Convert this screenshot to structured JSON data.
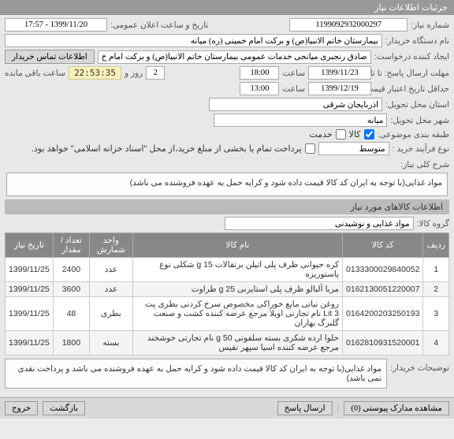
{
  "panel_title": "جزئیات اطلاعات نیاز",
  "top": {
    "need_no_label": "شماره نیاز:",
    "need_no": "1199092932000297",
    "announce_label": "تاریخ و ساعت اعلان عمومی:",
    "announce_value": "1399/11/20 - 17:57",
    "buyer_org_label": "نام دستگاه خریدار:",
    "buyer_org": "بیمارستان خاتم الانبیا(ص) و برکت امام خمینی (ره) میانه",
    "creator_label": "ایجاد کننده درخواست:",
    "creator": "صادق رنجبری میانجی خدمات عمومی بیمارستان خاتم الانبیا(ص) و برکت امام خ",
    "contact_btn": "اطلاعات تماس خریدار",
    "deadline_label": "مهلت ارسال پاسخ: تا تاریخ:",
    "deadline_date": "1399/11/23",
    "time_label": "ساعت",
    "deadline_time": "18:00",
    "countdown_days": "2",
    "countdown_suffix": "روز و",
    "countdown_time": "22:53:35",
    "countdown_remaining": "ساعت باقی مانده",
    "validity_label": "حداقل تاریخ اعتبار قیمت: تا تاریخ:",
    "validity_date": "1399/12/19",
    "validity_time": "13:00",
    "delivery_province_label": "استان محل تحویل:",
    "delivery_province": "آذربایجان شرقی",
    "delivery_city_label": "شهر محل تحویل:",
    "delivery_city": "میانه",
    "budget_type_label": "طبقه بندی موضوعی:",
    "goods": "کالا",
    "service": "خدمت",
    "process_type_label": "نوع فرآیند خرید :",
    "process_type": "متوسط",
    "payment_note": "پرداخت تمام یا بخشی از مبلغ خرید،از محل \"اسناد خزانه اسلامی\" خواهد بود."
  },
  "desc": {
    "label": "شرح کلی نیاز:",
    "text": "مواد غذایی(با توجه به ایران کد کالا قیمت داده شود و کرایه حمل به عهده فروشنده می باشد)"
  },
  "items_section": "اطلاعات کالاهای مورد نیاز",
  "group_label": "گروه کالا:",
  "group_value": "مواد غذایی و نوشیدنی",
  "table": {
    "headers": [
      "ردیف",
      "کد کالا",
      "نام کالا",
      "واحد شمارش",
      "تعداد / مقدار",
      "تاریخ نیاز"
    ],
    "rows": [
      {
        "n": "1",
        "code": "0133300029840052",
        "name": "کره حیوانی ظرف پلی اتیلن برتقالات 15 g شکلی نوع پاستوریزه",
        "unit": "عدد",
        "qty": "2400",
        "date": "1399/11/25"
      },
      {
        "n": "2",
        "code": "0162130051220007",
        "name": "مربا آلبالو ظرف پلی استایرنی 25 g طراوت",
        "unit": "عدد",
        "qty": "3600",
        "date": "1399/11/25"
      },
      {
        "n": "3",
        "code": "0164200203250193",
        "name": "روغن نباتی مایع خوراکی مخصوص سرخ کردنی بطری پت Lit 3 نام تجارتی اویلا مرجع عرضه کننده کشت و صنعت گلبرگ بهاران",
        "unit": "بطری",
        "qty": "48",
        "date": "1399/11/25"
      },
      {
        "n": "4",
        "code": "0162810931520001",
        "name": "حلوا ارده شکری بسته سلفونی 50 g نام تجارتی خوشخند مرجع عرضه کننده اسیا سپهر نفیس",
        "unit": "بسته",
        "qty": "1800",
        "date": "1399/11/25"
      }
    ]
  },
  "buyer_notes_label": "توضیحات خریدار:",
  "buyer_notes": "مواد غذایی(با توجه به ایران کد کالا قیمت داده شود و کرایه حمل به عهده فروشنده می باشد و پرداخت نقدی نمی باشد)",
  "watermark": "۰۲۱ - ۸۸۳۶۹۶",
  "bottom": {
    "attachments": "مشاهده مدارک پیوستی (0)",
    "reply": "ارسال پاسخ",
    "back": "بازگشت",
    "exit": "خروج"
  }
}
